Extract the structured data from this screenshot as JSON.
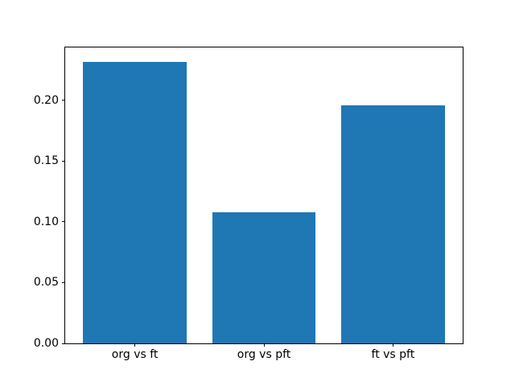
{
  "figure": {
    "background": "#ffffff",
    "axes_edge_color": "#000000",
    "text_color": "#000000"
  },
  "chart_data": {
    "type": "bar",
    "title": "",
    "xlabel": "",
    "ylabel": "",
    "categories": [
      "org vs ft",
      "org vs pft",
      "ft vs pft"
    ],
    "values": [
      0.232,
      0.108,
      0.196
    ],
    "bar_color": "#1f77b4",
    "x_positions": [
      0,
      1,
      2
    ],
    "bar_width": 0.8,
    "xlim": [
      -0.54,
      2.54
    ],
    "ylim": [
      0,
      0.2436
    ],
    "yticks": [
      0.0,
      0.05,
      0.1,
      0.15,
      0.2
    ],
    "ytick_labels": [
      "0.00",
      "0.05",
      "0.10",
      "0.15",
      "0.20"
    ],
    "grid": false,
    "legend": false
  }
}
